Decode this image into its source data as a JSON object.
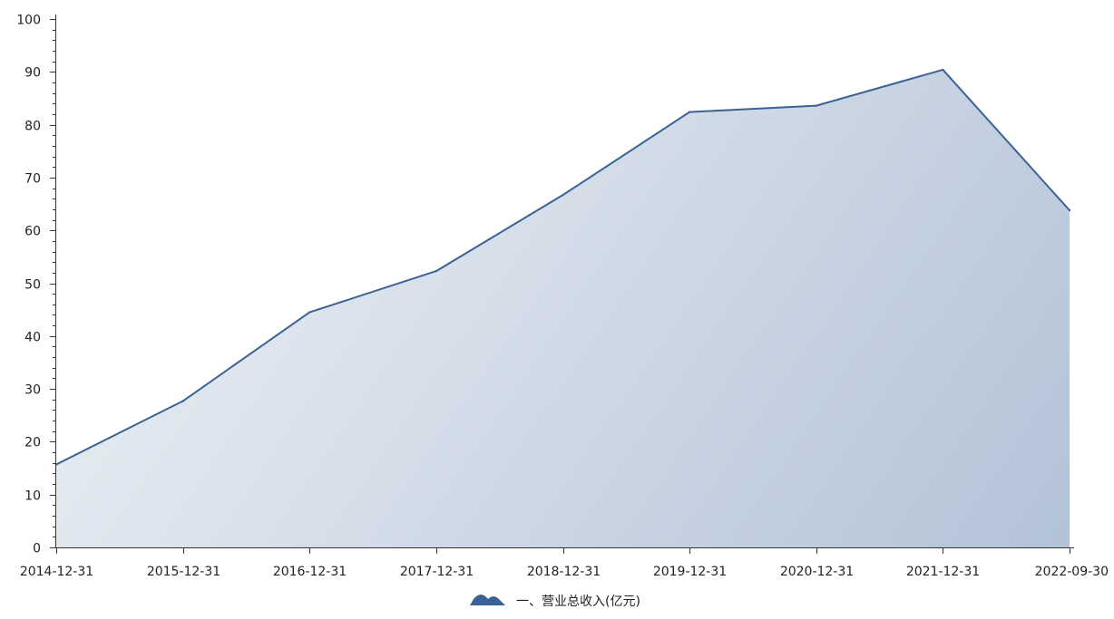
{
  "chart_data": {
    "type": "area",
    "categories": [
      "2014-12-31",
      "2015-12-31",
      "2016-12-31",
      "2017-12-31",
      "2018-12-31",
      "2019-12-31",
      "2020-12-31",
      "2021-12-31",
      "2022-09-30"
    ],
    "series": [
      {
        "name": "一、营业总收入(亿元)",
        "values": [
          15.7,
          27.7,
          44.5,
          52.3,
          66.7,
          82.4,
          83.6,
          90.4,
          63.8
        ]
      }
    ],
    "ylim": [
      0,
      100
    ],
    "yticks": [
      0,
      10,
      20,
      30,
      40,
      50,
      60,
      70,
      80,
      90,
      100
    ],
    "y_minor_step": 2,
    "grid": false,
    "legend_position": "bottom-center",
    "colors": {
      "line": "#3a6296",
      "fill_light": "#e6ebf2",
      "fill_dark": "#b2c2d6",
      "axis": "#333333"
    }
  }
}
